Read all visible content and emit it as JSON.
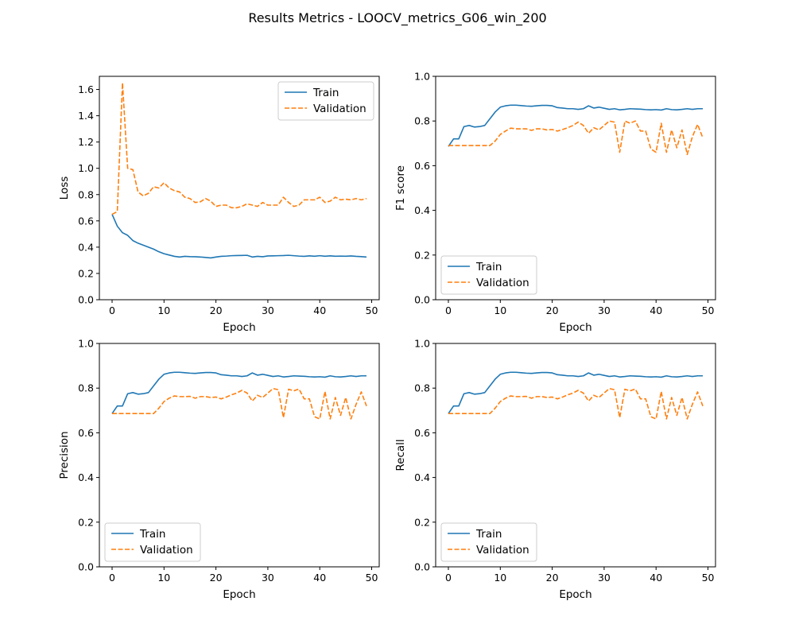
{
  "figure": {
    "suptitle": "Results Metrics - LOOCV_metrics_G06_win_200"
  },
  "colors": {
    "train": "#1f77b4",
    "validation": "#ff7f0e",
    "axis": "#000000",
    "legend_border": "#cccccc"
  },
  "chart_data": [
    {
      "type": "line",
      "xlabel": "Epoch",
      "ylabel": "Loss",
      "xlim": [
        -2.45,
        51.45
      ],
      "ylim": [
        0.0,
        1.7
      ],
      "xticks": [
        0,
        10,
        20,
        30,
        40,
        50
      ],
      "yticks": [
        0.0,
        0.2,
        0.4,
        0.6,
        0.8,
        1.0,
        1.2,
        1.4,
        1.6
      ],
      "ytick_labels": [
        "0.0",
        "0.2",
        "0.4",
        "0.6",
        "0.8",
        "1.0",
        "1.2",
        "1.4",
        "1.6"
      ],
      "legend_loc": "upper-right",
      "x": [
        0,
        1,
        2,
        3,
        4,
        5,
        6,
        7,
        8,
        9,
        10,
        11,
        12,
        13,
        14,
        15,
        16,
        17,
        18,
        19,
        20,
        21,
        22,
        23,
        24,
        25,
        26,
        27,
        28,
        29,
        30,
        31,
        32,
        33,
        34,
        35,
        36,
        37,
        38,
        39,
        40,
        41,
        42,
        43,
        44,
        45,
        46,
        47,
        48,
        49
      ],
      "series": [
        {
          "name": "Train",
          "style": "solid",
          "values": [
            0.65,
            0.56,
            0.51,
            0.49,
            0.45,
            0.43,
            0.415,
            0.4,
            0.385,
            0.365,
            0.35,
            0.34,
            0.33,
            0.325,
            0.33,
            0.328,
            0.327,
            0.325,
            0.322,
            0.318,
            0.325,
            0.33,
            0.332,
            0.335,
            0.336,
            0.337,
            0.338,
            0.325,
            0.33,
            0.327,
            0.333,
            0.334,
            0.335,
            0.336,
            0.338,
            0.335,
            0.332,
            0.33,
            0.334,
            0.331,
            0.335,
            0.331,
            0.334,
            0.331,
            0.332,
            0.331,
            0.333,
            0.33,
            0.328,
            0.325
          ]
        },
        {
          "name": "Validation",
          "style": "dashed",
          "values": [
            0.65,
            0.67,
            1.65,
            1.0,
            0.99,
            0.82,
            0.79,
            0.81,
            0.86,
            0.85,
            0.89,
            0.85,
            0.83,
            0.82,
            0.78,
            0.77,
            0.74,
            0.745,
            0.77,
            0.75,
            0.71,
            0.72,
            0.72,
            0.7,
            0.7,
            0.71,
            0.73,
            0.72,
            0.71,
            0.74,
            0.72,
            0.72,
            0.72,
            0.78,
            0.74,
            0.71,
            0.72,
            0.76,
            0.76,
            0.76,
            0.78,
            0.74,
            0.75,
            0.78,
            0.76,
            0.765,
            0.76,
            0.77,
            0.76,
            0.77
          ]
        }
      ]
    },
    {
      "type": "line",
      "xlabel": "Epoch",
      "ylabel": "F1 score",
      "xlim": [
        -2.45,
        51.45
      ],
      "ylim": [
        0.0,
        1.0
      ],
      "xticks": [
        0,
        10,
        20,
        30,
        40,
        50
      ],
      "yticks": [
        0.0,
        0.2,
        0.4,
        0.6,
        0.8,
        1.0
      ],
      "ytick_labels": [
        "0.0",
        "0.2",
        "0.4",
        "0.6",
        "0.8",
        "1.0"
      ],
      "legend_loc": "lower-left",
      "x": [
        0,
        1,
        2,
        3,
        4,
        5,
        6,
        7,
        8,
        9,
        10,
        11,
        12,
        13,
        14,
        15,
        16,
        17,
        18,
        19,
        20,
        21,
        22,
        23,
        24,
        25,
        26,
        27,
        28,
        29,
        30,
        31,
        32,
        33,
        34,
        35,
        36,
        37,
        38,
        39,
        40,
        41,
        42,
        43,
        44,
        45,
        46,
        47,
        48,
        49
      ],
      "series": [
        {
          "name": "Train",
          "style": "solid",
          "values": [
            0.686,
            0.72,
            0.72,
            0.775,
            0.78,
            0.773,
            0.775,
            0.78,
            0.81,
            0.84,
            0.862,
            0.868,
            0.871,
            0.871,
            0.869,
            0.867,
            0.866,
            0.868,
            0.87,
            0.87,
            0.868,
            0.86,
            0.858,
            0.855,
            0.855,
            0.852,
            0.855,
            0.868,
            0.858,
            0.862,
            0.857,
            0.852,
            0.855,
            0.85,
            0.852,
            0.855,
            0.854,
            0.853,
            0.851,
            0.85,
            0.851,
            0.849,
            0.855,
            0.851,
            0.85,
            0.852,
            0.855,
            0.852,
            0.855,
            0.855
          ]
        },
        {
          "name": "Validation",
          "style": "dashed",
          "values": [
            0.69,
            0.69,
            0.69,
            0.69,
            0.69,
            0.69,
            0.69,
            0.69,
            0.69,
            0.71,
            0.74,
            0.755,
            0.768,
            0.765,
            0.765,
            0.765,
            0.758,
            0.765,
            0.765,
            0.76,
            0.762,
            0.755,
            0.762,
            0.77,
            0.78,
            0.795,
            0.78,
            0.745,
            0.77,
            0.76,
            0.78,
            0.8,
            0.795,
            0.66,
            0.8,
            0.79,
            0.8,
            0.755,
            0.755,
            0.675,
            0.66,
            0.79,
            0.66,
            0.76,
            0.68,
            0.76,
            0.65,
            0.73,
            0.785,
            0.725
          ]
        }
      ]
    },
    {
      "type": "line",
      "xlabel": "Epoch",
      "ylabel": "Precision",
      "xlim": [
        -2.45,
        51.45
      ],
      "ylim": [
        0.0,
        1.0
      ],
      "xticks": [
        0,
        10,
        20,
        30,
        40,
        50
      ],
      "yticks": [
        0.0,
        0.2,
        0.4,
        0.6,
        0.8,
        1.0
      ],
      "ytick_labels": [
        "0.0",
        "0.2",
        "0.4",
        "0.6",
        "0.8",
        "1.0"
      ],
      "legend_loc": "lower-left",
      "x": [
        0,
        1,
        2,
        3,
        4,
        5,
        6,
        7,
        8,
        9,
        10,
        11,
        12,
        13,
        14,
        15,
        16,
        17,
        18,
        19,
        20,
        21,
        22,
        23,
        24,
        25,
        26,
        27,
        28,
        29,
        30,
        31,
        32,
        33,
        34,
        35,
        36,
        37,
        38,
        39,
        40,
        41,
        42,
        43,
        44,
        45,
        46,
        47,
        48,
        49
      ],
      "series": [
        {
          "name": "Train",
          "style": "solid",
          "values": [
            0.686,
            0.72,
            0.72,
            0.775,
            0.78,
            0.773,
            0.775,
            0.78,
            0.81,
            0.84,
            0.862,
            0.868,
            0.871,
            0.871,
            0.869,
            0.867,
            0.866,
            0.868,
            0.87,
            0.87,
            0.868,
            0.86,
            0.858,
            0.855,
            0.855,
            0.852,
            0.855,
            0.868,
            0.858,
            0.862,
            0.857,
            0.852,
            0.855,
            0.85,
            0.852,
            0.855,
            0.854,
            0.853,
            0.851,
            0.85,
            0.851,
            0.849,
            0.855,
            0.851,
            0.85,
            0.852,
            0.855,
            0.852,
            0.855,
            0.855
          ]
        },
        {
          "name": "Validation",
          "style": "dashed",
          "values": [
            0.686,
            0.686,
            0.686,
            0.686,
            0.686,
            0.686,
            0.686,
            0.686,
            0.686,
            0.71,
            0.74,
            0.755,
            0.765,
            0.762,
            0.762,
            0.763,
            0.755,
            0.762,
            0.762,
            0.758,
            0.76,
            0.752,
            0.76,
            0.77,
            0.778,
            0.79,
            0.778,
            0.742,
            0.768,
            0.758,
            0.778,
            0.798,
            0.793,
            0.668,
            0.795,
            0.788,
            0.796,
            0.752,
            0.752,
            0.672,
            0.662,
            0.785,
            0.662,
            0.758,
            0.678,
            0.758,
            0.662,
            0.728,
            0.783,
            0.72
          ]
        }
      ]
    },
    {
      "type": "line",
      "xlabel": "Epoch",
      "ylabel": "Recall",
      "xlim": [
        -2.45,
        51.45
      ],
      "ylim": [
        0.0,
        1.0
      ],
      "xticks": [
        0,
        10,
        20,
        30,
        40,
        50
      ],
      "yticks": [
        0.0,
        0.2,
        0.4,
        0.6,
        0.8,
        1.0
      ],
      "ytick_labels": [
        "0.0",
        "0.2",
        "0.4",
        "0.6",
        "0.8",
        "1.0"
      ],
      "legend_loc": "lower-left",
      "x": [
        0,
        1,
        2,
        3,
        4,
        5,
        6,
        7,
        8,
        9,
        10,
        11,
        12,
        13,
        14,
        15,
        16,
        17,
        18,
        19,
        20,
        21,
        22,
        23,
        24,
        25,
        26,
        27,
        28,
        29,
        30,
        31,
        32,
        33,
        34,
        35,
        36,
        37,
        38,
        39,
        40,
        41,
        42,
        43,
        44,
        45,
        46,
        47,
        48,
        49
      ],
      "series": [
        {
          "name": "Train",
          "style": "solid",
          "values": [
            0.686,
            0.72,
            0.72,
            0.775,
            0.78,
            0.773,
            0.775,
            0.78,
            0.81,
            0.84,
            0.862,
            0.868,
            0.871,
            0.871,
            0.869,
            0.867,
            0.866,
            0.868,
            0.87,
            0.87,
            0.868,
            0.86,
            0.858,
            0.855,
            0.855,
            0.852,
            0.855,
            0.868,
            0.858,
            0.862,
            0.857,
            0.852,
            0.855,
            0.85,
            0.852,
            0.855,
            0.854,
            0.853,
            0.851,
            0.85,
            0.851,
            0.849,
            0.855,
            0.851,
            0.85,
            0.852,
            0.855,
            0.852,
            0.855,
            0.855
          ]
        },
        {
          "name": "Validation",
          "style": "dashed",
          "values": [
            0.686,
            0.686,
            0.686,
            0.686,
            0.686,
            0.686,
            0.686,
            0.686,
            0.686,
            0.71,
            0.74,
            0.755,
            0.765,
            0.762,
            0.762,
            0.763,
            0.755,
            0.762,
            0.762,
            0.758,
            0.76,
            0.752,
            0.76,
            0.77,
            0.778,
            0.79,
            0.778,
            0.742,
            0.768,
            0.758,
            0.778,
            0.798,
            0.793,
            0.668,
            0.795,
            0.788,
            0.796,
            0.752,
            0.752,
            0.672,
            0.662,
            0.785,
            0.662,
            0.758,
            0.678,
            0.758,
            0.662,
            0.728,
            0.783,
            0.72
          ]
        }
      ]
    }
  ]
}
